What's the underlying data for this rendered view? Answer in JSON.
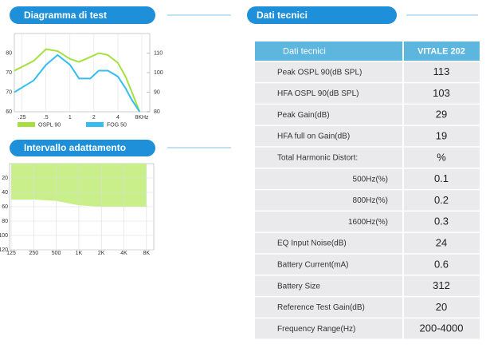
{
  "sections": {
    "test": "Diagramma di test",
    "range": "Intervallo adattamento",
    "specs": "Dati tecnici"
  },
  "test_chart": {
    "type": "line",
    "x": [
      0.2,
      0.35,
      0.5,
      0.7,
      1,
      1.3,
      1.8,
      2.3,
      3,
      4,
      5,
      6,
      7.5
    ],
    "series": [
      {
        "name": "OSPL 90",
        "color": "#a6df3f",
        "values": [
          101,
          106,
          112,
          111,
          107,
          105.5,
          108,
          110,
          109,
          105,
          98,
          90,
          80
        ]
      },
      {
        "name": "FOG 50",
        "color": "#35bdf0",
        "values": [
          90,
          96,
          104,
          109,
          104,
          97,
          97,
          101,
          101,
          98,
          92,
          86,
          80
        ]
      }
    ],
    "xlim": [
      0.2,
      8
    ],
    "log_x": true,
    "xticks": [
      {
        "value": 0.25,
        "label": ".25"
      },
      {
        "value": 0.5,
        "label": ".5"
      },
      1,
      2,
      4,
      {
        "value": 8,
        "label": "8KHz"
      }
    ],
    "ylim": [
      80,
      120
    ],
    "yticks": [
      110,
      100,
      90,
      80
    ],
    "left_labels": [
      "80",
      "70",
      "70",
      "60"
    ]
  },
  "range_chart": {
    "type": "area",
    "categories": [
      "125",
      "250",
      "500",
      "1K",
      "2K",
      "4K",
      "8K"
    ],
    "values": [
      50,
      50,
      52,
      58,
      60,
      60,
      60
    ],
    "color": "#c9ef8a",
    "ylim": [
      0,
      120
    ],
    "yticks": [
      20,
      40,
      60,
      80,
      100,
      120
    ],
    "inverted": true
  },
  "table": {
    "header": [
      "Dati tecnici",
      "VITALE 202"
    ],
    "rows": [
      [
        "Peak OSPL 90(dB SPL)",
        113
      ],
      [
        "HFA OSPL 90(dB SPL)",
        103
      ],
      [
        "Peak Gain(dB)",
        29
      ],
      [
        "HFA  full on Gain(dB)",
        19
      ],
      [
        "Total Harmonic Distort:",
        "%"
      ],
      [
        "500Hz(%)",
        0.1
      ],
      [
        "800Hz(%)",
        0.2
      ],
      [
        "1600Hz(%)",
        0.3
      ],
      [
        "EQ Input Noise(dB)",
        24
      ],
      [
        "Battery Current(mA)",
        0.6
      ],
      [
        "Battery Size",
        312
      ],
      [
        "Reference Test Gain(dB)",
        20
      ],
      [
        "Frequency Range(Hz)",
        "200-4000"
      ]
    ]
  }
}
